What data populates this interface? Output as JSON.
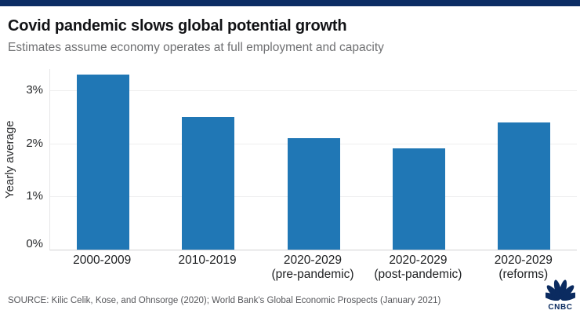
{
  "header": {
    "accent_color": "#0c2d64",
    "title": "Covid pandemic slows global potential growth",
    "subtitle": "Estimates assume economy operates at full employment and capacity"
  },
  "chart_data": {
    "type": "bar",
    "title": "Covid pandemic slows global potential growth",
    "subtitle": "Estimates assume economy operates at full employment and capacity",
    "categories": [
      "2000-2009",
      "2010-2019",
      "2020-2029 (pre-pandemic)",
      "2020-2029 (post-pandemic)",
      "2020-2029 (reforms)"
    ],
    "category_lines": [
      [
        "2000-2009"
      ],
      [
        "2010-2019"
      ],
      [
        "2020-2029",
        "(pre-pandemic)"
      ],
      [
        "2020-2029",
        "(post-pandemic)"
      ],
      [
        "2020-2029",
        "(reforms)"
      ]
    ],
    "values": [
      3.3,
      2.5,
      2.1,
      1.9,
      2.4
    ],
    "unit": "%",
    "ylabel": "Yearly average",
    "xlabel": "",
    "ylim": [
      0,
      3.4
    ],
    "yticks": [
      {
        "value": 0,
        "label": "0%"
      },
      {
        "value": 1,
        "label": "1%"
      },
      {
        "value": 2,
        "label": "2%"
      },
      {
        "value": 3,
        "label": "3%"
      }
    ],
    "grid": true,
    "legend": false,
    "bar_color": "#2077b5"
  },
  "footer": {
    "source": "SOURCE: Kilic Celik, Kose, and Ohnsorge (2020); World Bank's Global Economic Prospects (January 2021)",
    "logo_text": "CNBC",
    "logo_color": "#0b2b60"
  }
}
